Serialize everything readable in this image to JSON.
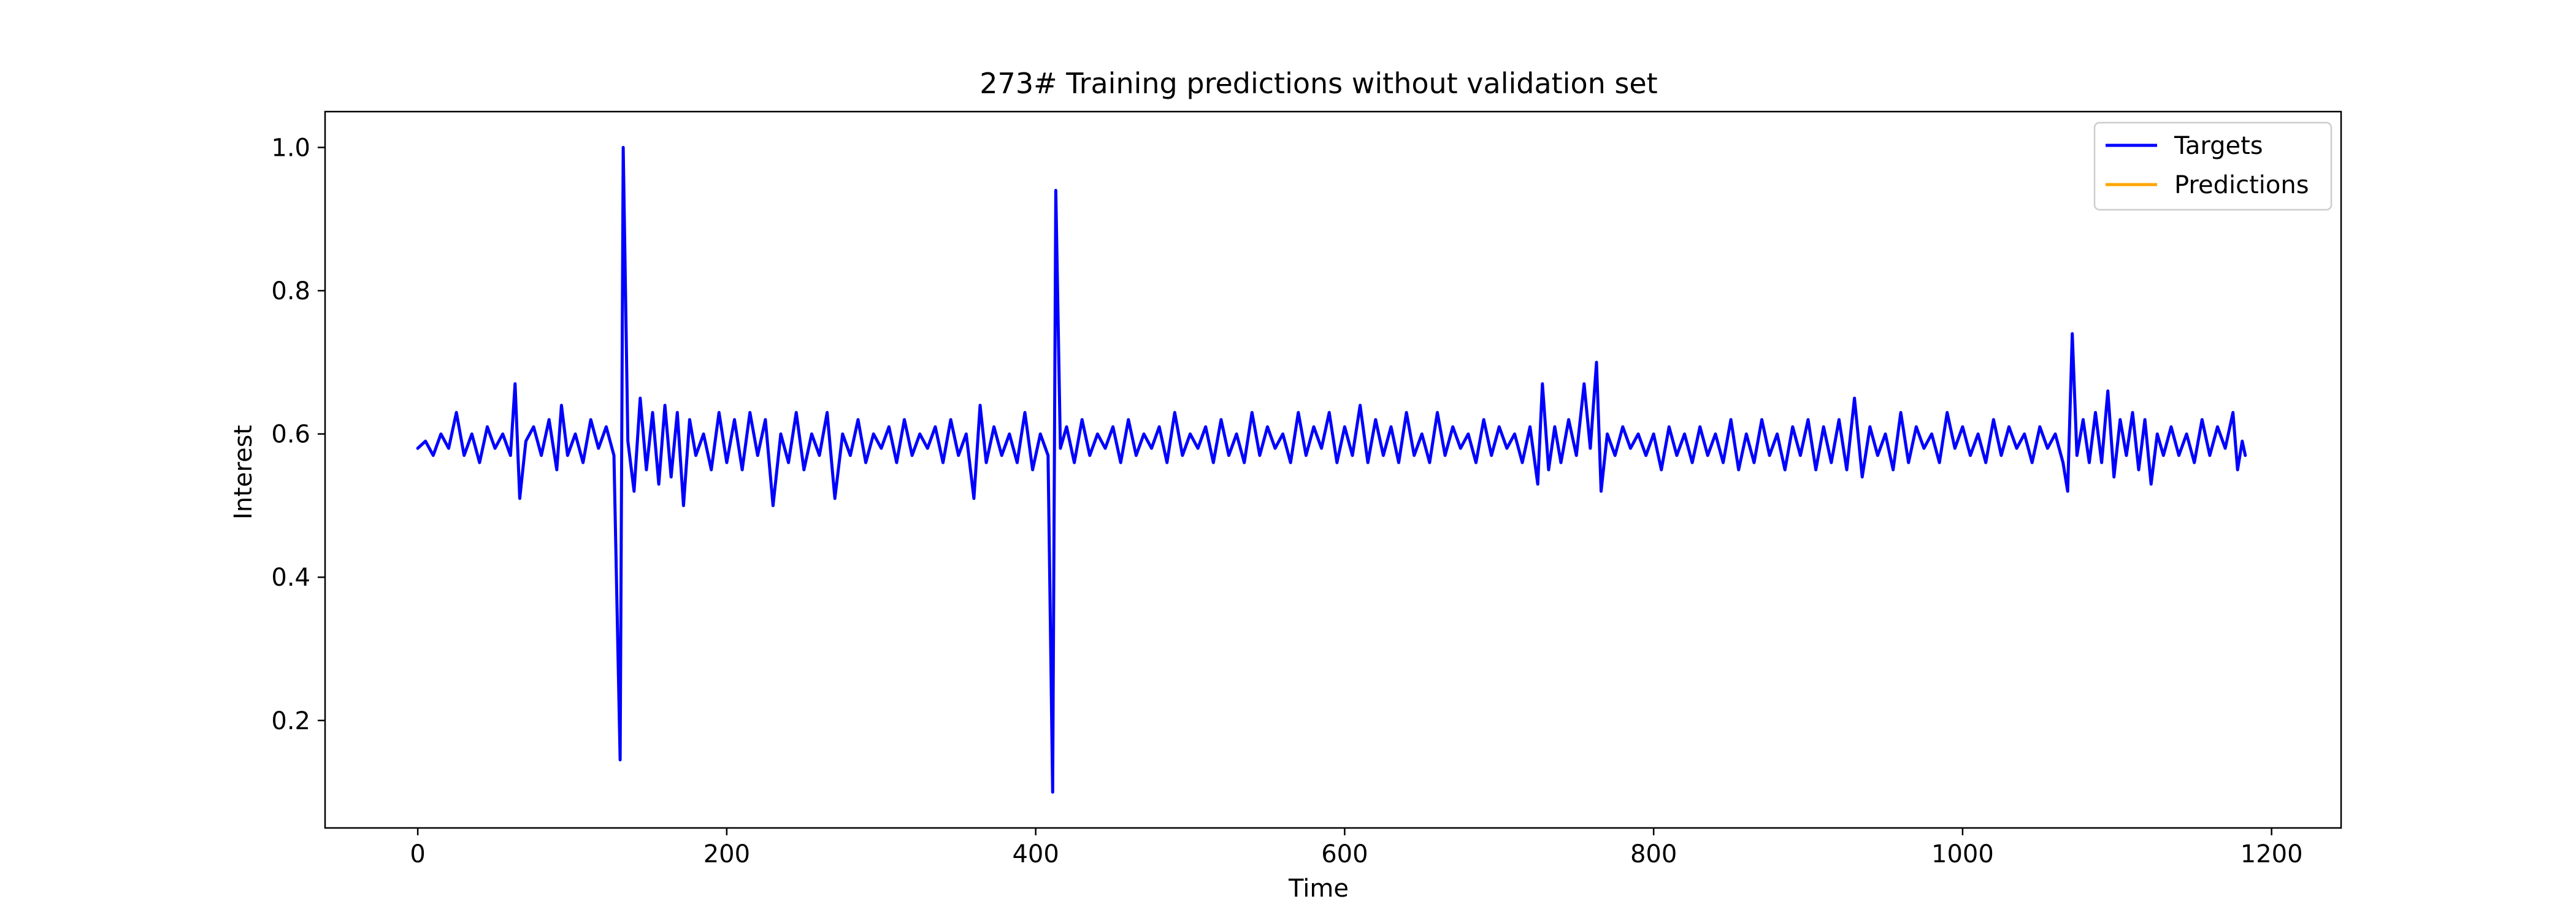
{
  "chart_data": {
    "type": "line",
    "title": "273# Training predictions without validation set",
    "xlabel": "Time",
    "ylabel": "Interest",
    "xlim": [
      -60,
      1245
    ],
    "ylim": [
      0.05,
      1.05
    ],
    "x_ticks": [
      0,
      200,
      400,
      600,
      800,
      1000,
      1200
    ],
    "y_ticks": [
      0.2,
      0.4,
      0.6,
      0.8,
      1.0
    ],
    "x_tick_labels": [
      "0",
      "200",
      "400",
      "600",
      "800",
      "1000",
      "1200"
    ],
    "y_tick_labels": [
      "0.2",
      "0.4",
      "0.6",
      "0.8",
      "1.0"
    ],
    "grid": false,
    "legend_position": "top-right",
    "series": [
      {
        "name": "Targets",
        "color": "#0000ff",
        "points": [
          [
            0,
            0.58
          ],
          [
            5,
            0.59
          ],
          [
            10,
            0.57
          ],
          [
            15,
            0.6
          ],
          [
            20,
            0.58
          ],
          [
            25,
            0.63
          ],
          [
            30,
            0.57
          ],
          [
            35,
            0.6
          ],
          [
            40,
            0.56
          ],
          [
            45,
            0.61
          ],
          [
            50,
            0.58
          ],
          [
            55,
            0.6
          ],
          [
            60,
            0.57
          ],
          [
            63,
            0.67
          ],
          [
            66,
            0.51
          ],
          [
            70,
            0.59
          ],
          [
            75,
            0.61
          ],
          [
            80,
            0.57
          ],
          [
            85,
            0.62
          ],
          [
            90,
            0.55
          ],
          [
            93,
            0.64
          ],
          [
            97,
            0.57
          ],
          [
            102,
            0.6
          ],
          [
            107,
            0.56
          ],
          [
            112,
            0.62
          ],
          [
            117,
            0.58
          ],
          [
            122,
            0.61
          ],
          [
            127,
            0.57
          ],
          [
            131,
            0.145
          ],
          [
            133,
            1.0
          ],
          [
            136,
            0.59
          ],
          [
            140,
            0.52
          ],
          [
            144,
            0.65
          ],
          [
            148,
            0.55
          ],
          [
            152,
            0.63
          ],
          [
            156,
            0.53
          ],
          [
            160,
            0.64
          ],
          [
            164,
            0.54
          ],
          [
            168,
            0.63
          ],
          [
            172,
            0.5
          ],
          [
            176,
            0.62
          ],
          [
            180,
            0.57
          ],
          [
            185,
            0.6
          ],
          [
            190,
            0.55
          ],
          [
            195,
            0.63
          ],
          [
            200,
            0.56
          ],
          [
            205,
            0.62
          ],
          [
            210,
            0.55
          ],
          [
            215,
            0.63
          ],
          [
            220,
            0.57
          ],
          [
            225,
            0.62
          ],
          [
            230,
            0.5
          ],
          [
            235,
            0.6
          ],
          [
            240,
            0.56
          ],
          [
            245,
            0.63
          ],
          [
            250,
            0.55
          ],
          [
            255,
            0.6
          ],
          [
            260,
            0.57
          ],
          [
            265,
            0.63
          ],
          [
            270,
            0.51
          ],
          [
            275,
            0.6
          ],
          [
            280,
            0.57
          ],
          [
            285,
            0.62
          ],
          [
            290,
            0.56
          ],
          [
            295,
            0.6
          ],
          [
            300,
            0.58
          ],
          [
            305,
            0.61
          ],
          [
            310,
            0.56
          ],
          [
            315,
            0.62
          ],
          [
            320,
            0.57
          ],
          [
            325,
            0.6
          ],
          [
            330,
            0.58
          ],
          [
            335,
            0.61
          ],
          [
            340,
            0.56
          ],
          [
            345,
            0.62
          ],
          [
            350,
            0.57
          ],
          [
            355,
            0.6
          ],
          [
            360,
            0.51
          ],
          [
            364,
            0.64
          ],
          [
            368,
            0.56
          ],
          [
            373,
            0.61
          ],
          [
            378,
            0.57
          ],
          [
            383,
            0.6
          ],
          [
            388,
            0.56
          ],
          [
            393,
            0.63
          ],
          [
            398,
            0.55
          ],
          [
            403,
            0.6
          ],
          [
            408,
            0.57
          ],
          [
            411,
            0.1
          ],
          [
            413,
            0.94
          ],
          [
            416,
            0.58
          ],
          [
            420,
            0.61
          ],
          [
            425,
            0.56
          ],
          [
            430,
            0.62
          ],
          [
            435,
            0.57
          ],
          [
            440,
            0.6
          ],
          [
            445,
            0.58
          ],
          [
            450,
            0.61
          ],
          [
            455,
            0.56
          ],
          [
            460,
            0.62
          ],
          [
            465,
            0.57
          ],
          [
            470,
            0.6
          ],
          [
            475,
            0.58
          ],
          [
            480,
            0.61
          ],
          [
            485,
            0.56
          ],
          [
            490,
            0.63
          ],
          [
            495,
            0.57
          ],
          [
            500,
            0.6
          ],
          [
            505,
            0.58
          ],
          [
            510,
            0.61
          ],
          [
            515,
            0.56
          ],
          [
            520,
            0.62
          ],
          [
            525,
            0.57
          ],
          [
            530,
            0.6
          ],
          [
            535,
            0.56
          ],
          [
            540,
            0.63
          ],
          [
            545,
            0.57
          ],
          [
            550,
            0.61
          ],
          [
            555,
            0.58
          ],
          [
            560,
            0.6
          ],
          [
            565,
            0.56
          ],
          [
            570,
            0.63
          ],
          [
            575,
            0.57
          ],
          [
            580,
            0.61
          ],
          [
            585,
            0.58
          ],
          [
            590,
            0.63
          ],
          [
            595,
            0.56
          ],
          [
            600,
            0.61
          ],
          [
            605,
            0.57
          ],
          [
            610,
            0.64
          ],
          [
            615,
            0.56
          ],
          [
            620,
            0.62
          ],
          [
            625,
            0.57
          ],
          [
            630,
            0.61
          ],
          [
            635,
            0.56
          ],
          [
            640,
            0.63
          ],
          [
            645,
            0.57
          ],
          [
            650,
            0.6
          ],
          [
            655,
            0.56
          ],
          [
            660,
            0.63
          ],
          [
            665,
            0.57
          ],
          [
            670,
            0.61
          ],
          [
            675,
            0.58
          ],
          [
            680,
            0.6
          ],
          [
            685,
            0.56
          ],
          [
            690,
            0.62
          ],
          [
            695,
            0.57
          ],
          [
            700,
            0.61
          ],
          [
            705,
            0.58
          ],
          [
            710,
            0.6
          ],
          [
            715,
            0.56
          ],
          [
            720,
            0.61
          ],
          [
            725,
            0.53
          ],
          [
            728,
            0.67
          ],
          [
            732,
            0.55
          ],
          [
            736,
            0.61
          ],
          [
            740,
            0.56
          ],
          [
            745,
            0.62
          ],
          [
            750,
            0.57
          ],
          [
            755,
            0.67
          ],
          [
            759,
            0.58
          ],
          [
            763,
            0.7
          ],
          [
            766,
            0.52
          ],
          [
            770,
            0.6
          ],
          [
            775,
            0.57
          ],
          [
            780,
            0.61
          ],
          [
            785,
            0.58
          ],
          [
            790,
            0.6
          ],
          [
            795,
            0.57
          ],
          [
            800,
            0.6
          ],
          [
            805,
            0.55
          ],
          [
            810,
            0.61
          ],
          [
            815,
            0.57
          ],
          [
            820,
            0.6
          ],
          [
            825,
            0.56
          ],
          [
            830,
            0.61
          ],
          [
            835,
            0.57
          ],
          [
            840,
            0.6
          ],
          [
            845,
            0.56
          ],
          [
            850,
            0.62
          ],
          [
            855,
            0.55
          ],
          [
            860,
            0.6
          ],
          [
            865,
            0.56
          ],
          [
            870,
            0.62
          ],
          [
            875,
            0.57
          ],
          [
            880,
            0.6
          ],
          [
            885,
            0.55
          ],
          [
            890,
            0.61
          ],
          [
            895,
            0.57
          ],
          [
            900,
            0.62
          ],
          [
            905,
            0.55
          ],
          [
            910,
            0.61
          ],
          [
            915,
            0.56
          ],
          [
            920,
            0.62
          ],
          [
            925,
            0.55
          ],
          [
            930,
            0.65
          ],
          [
            935,
            0.54
          ],
          [
            940,
            0.61
          ],
          [
            945,
            0.57
          ],
          [
            950,
            0.6
          ],
          [
            955,
            0.55
          ],
          [
            960,
            0.63
          ],
          [
            965,
            0.56
          ],
          [
            970,
            0.61
          ],
          [
            975,
            0.58
          ],
          [
            980,
            0.6
          ],
          [
            985,
            0.56
          ],
          [
            990,
            0.63
          ],
          [
            995,
            0.58
          ],
          [
            1000,
            0.61
          ],
          [
            1005,
            0.57
          ],
          [
            1010,
            0.6
          ],
          [
            1015,
            0.56
          ],
          [
            1020,
            0.62
          ],
          [
            1025,
            0.57
          ],
          [
            1030,
            0.61
          ],
          [
            1035,
            0.58
          ],
          [
            1040,
            0.6
          ],
          [
            1045,
            0.56
          ],
          [
            1050,
            0.61
          ],
          [
            1055,
            0.58
          ],
          [
            1060,
            0.6
          ],
          [
            1065,
            0.56
          ],
          [
            1068,
            0.52
          ],
          [
            1071,
            0.74
          ],
          [
            1074,
            0.57
          ],
          [
            1078,
            0.62
          ],
          [
            1082,
            0.56
          ],
          [
            1086,
            0.63
          ],
          [
            1090,
            0.56
          ],
          [
            1094,
            0.66
          ],
          [
            1098,
            0.54
          ],
          [
            1102,
            0.62
          ],
          [
            1106,
            0.57
          ],
          [
            1110,
            0.63
          ],
          [
            1114,
            0.55
          ],
          [
            1118,
            0.62
          ],
          [
            1122,
            0.53
          ],
          [
            1126,
            0.6
          ],
          [
            1130,
            0.57
          ],
          [
            1135,
            0.61
          ],
          [
            1140,
            0.57
          ],
          [
            1145,
            0.6
          ],
          [
            1150,
            0.56
          ],
          [
            1155,
            0.62
          ],
          [
            1160,
            0.57
          ],
          [
            1165,
            0.61
          ],
          [
            1170,
            0.58
          ],
          [
            1175,
            0.63
          ],
          [
            1178,
            0.55
          ],
          [
            1181,
            0.59
          ],
          [
            1183,
            0.57
          ]
        ]
      },
      {
        "name": "Predictions",
        "color": "#ffa500",
        "points": []
      }
    ]
  }
}
